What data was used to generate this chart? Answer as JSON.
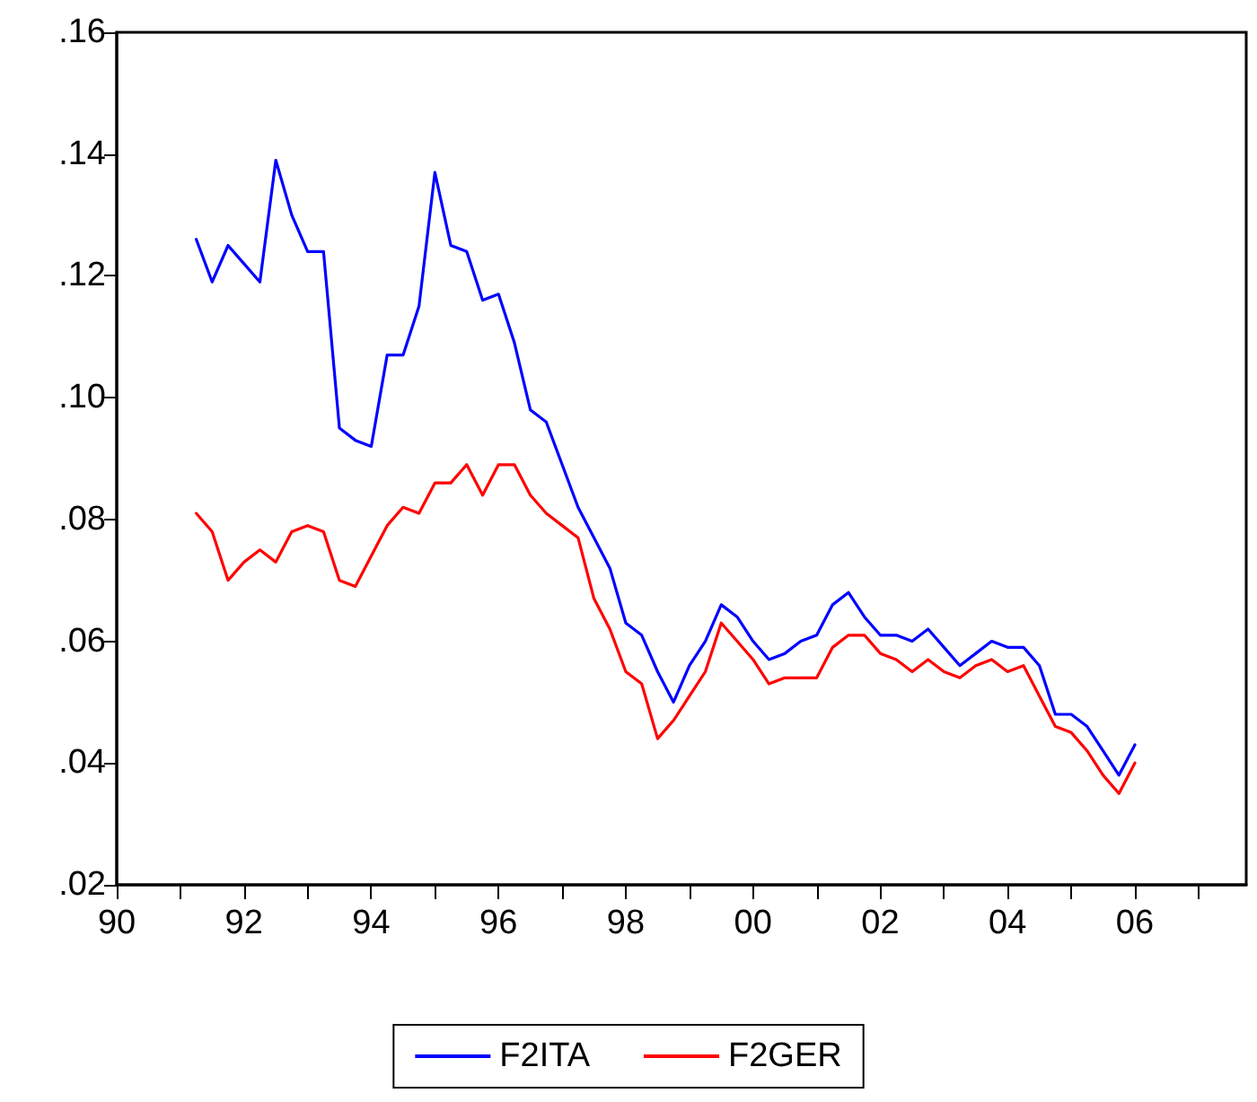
{
  "chart_data": {
    "type": "line",
    "x": [
      1991.25,
      1991.5,
      1991.75,
      1992,
      1992.25,
      1992.5,
      1992.75,
      1993,
      1993.25,
      1993.5,
      1993.75,
      1994,
      1994.25,
      1994.5,
      1994.75,
      1995,
      1995.25,
      1995.5,
      1995.75,
      1996,
      1996.25,
      1996.5,
      1996.75,
      1997,
      1997.25,
      1997.5,
      1997.75,
      1998,
      1998.25,
      1998.5,
      1998.75,
      1999,
      1999.25,
      1999.5,
      1999.75,
      2000,
      2000.25,
      2000.5,
      2000.75,
      2001,
      2001.25,
      2001.5,
      2001.75,
      2002,
      2002.25,
      2002.5,
      2002.75,
      2003,
      2003.25,
      2003.5,
      2003.75,
      2004,
      2004.25,
      2004.5,
      2004.75,
      2005,
      2005.25,
      2005.5,
      2005.75,
      2006
    ],
    "series": [
      {
        "name": "F2ITA",
        "color": "#0000ff",
        "values": [
          0.126,
          0.119,
          0.125,
          0.122,
          0.119,
          0.139,
          0.13,
          0.124,
          0.124,
          0.095,
          0.093,
          0.092,
          0.107,
          0.107,
          0.115,
          0.137,
          0.125,
          0.124,
          0.116,
          0.117,
          0.109,
          0.098,
          0.096,
          0.089,
          0.082,
          0.077,
          0.072,
          0.063,
          0.061,
          0.055,
          0.05,
          0.056,
          0.06,
          0.066,
          0.064,
          0.06,
          0.057,
          0.058,
          0.06,
          0.061,
          0.066,
          0.068,
          0.064,
          0.061,
          0.061,
          0.06,
          0.062,
          0.059,
          0.056,
          0.058,
          0.06,
          0.059,
          0.059,
          0.056,
          0.048,
          0.048,
          0.046,
          0.042,
          0.038,
          0.043
        ]
      },
      {
        "name": "F2GER",
        "color": "#ff0000",
        "values": [
          0.081,
          0.078,
          0.07,
          0.073,
          0.075,
          0.073,
          0.078,
          0.079,
          0.078,
          0.07,
          0.069,
          0.074,
          0.079,
          0.082,
          0.081,
          0.086,
          0.086,
          0.089,
          0.084,
          0.089,
          0.089,
          0.084,
          0.081,
          0.079,
          0.077,
          0.067,
          0.062,
          0.055,
          0.053,
          0.044,
          0.047,
          0.051,
          0.055,
          0.063,
          0.06,
          0.057,
          0.053,
          0.054,
          0.054,
          0.054,
          0.059,
          0.061,
          0.061,
          0.058,
          0.057,
          0.055,
          0.057,
          0.055,
          0.054,
          0.056,
          0.057,
          0.055,
          0.056,
          0.051,
          0.046,
          0.045,
          0.042,
          0.038,
          0.035,
          0.04
        ]
      }
    ],
    "xlim": [
      1990,
      2007.75
    ],
    "xticks": [
      {
        "value": 1990,
        "label": "90"
      },
      {
        "value": 1991,
        "label": null
      },
      {
        "value": 1992,
        "label": "92"
      },
      {
        "value": 1993,
        "label": null
      },
      {
        "value": 1994,
        "label": "94"
      },
      {
        "value": 1995,
        "label": null
      },
      {
        "value": 1996,
        "label": "96"
      },
      {
        "value": 1997,
        "label": null
      },
      {
        "value": 1998,
        "label": "98"
      },
      {
        "value": 1999,
        "label": null
      },
      {
        "value": 2000,
        "label": "00"
      },
      {
        "value": 2001,
        "label": null
      },
      {
        "value": 2002,
        "label": "02"
      },
      {
        "value": 2003,
        "label": null
      },
      {
        "value": 2004,
        "label": "04"
      },
      {
        "value": 2005,
        "label": null
      },
      {
        "value": 2006,
        "label": "06"
      },
      {
        "value": 2007,
        "label": null
      }
    ],
    "ylim": [
      0.02,
      0.16
    ],
    "yticks": [
      {
        "value": 0.02,
        "label": ".02"
      },
      {
        "value": 0.04,
        "label": ".04"
      },
      {
        "value": 0.06,
        "label": ".06"
      },
      {
        "value": 0.08,
        "label": ".08"
      },
      {
        "value": 0.1,
        "label": ".10"
      },
      {
        "value": 0.12,
        "label": ".12"
      },
      {
        "value": 0.14,
        "label": ".14"
      },
      {
        "value": 0.16,
        "label": ".16"
      }
    ],
    "grid": false,
    "legend": "bottom",
    "marker": "none",
    "line_style": "solid"
  }
}
